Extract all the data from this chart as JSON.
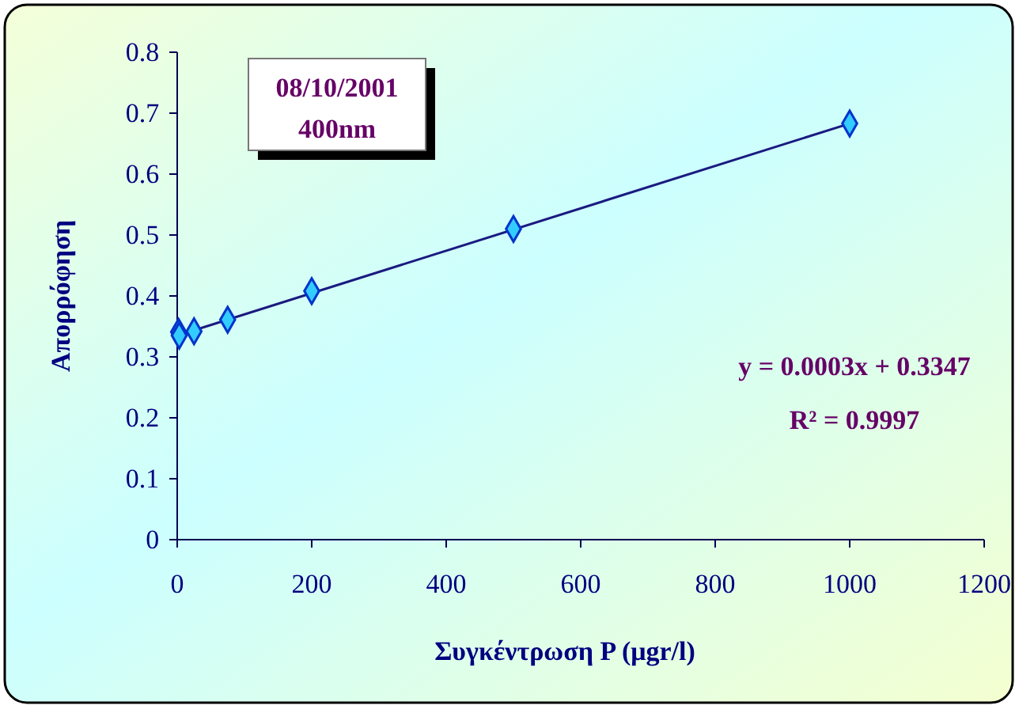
{
  "chart_data": {
    "type": "scatter",
    "xlabel": "Συγκέντρωση P (μgr/l)",
    "ylabel": "Απορρόφηση",
    "xlim": [
      0,
      1200
    ],
    "xticks": [
      0,
      200,
      400,
      600,
      800,
      1000,
      1200
    ],
    "ylim": [
      0,
      0.8
    ],
    "yticks": [
      0,
      0.1,
      0.2,
      0.3,
      0.4,
      0.5,
      0.6,
      0.7,
      0.8
    ],
    "grid": false,
    "series": [
      {
        "color": "#0033cc",
        "marker": "diamond",
        "x": [
          2,
          3,
          25,
          75,
          200,
          500,
          1000
        ],
        "values": [
          0.341,
          0.335,
          0.342,
          0.361,
          0.408,
          0.51,
          0.683
        ]
      },
      {
        "type": "line",
        "marker": "none",
        "color": "#1a1a80",
        "x": [
          0,
          1000
        ],
        "values": [
          0.335,
          0.683
        ]
      }
    ],
    "annotations": [
      "08/10/2001\n400nm",
      "y = 0.0003x + 0.3347",
      "R² = 0.9997"
    ]
  }
}
